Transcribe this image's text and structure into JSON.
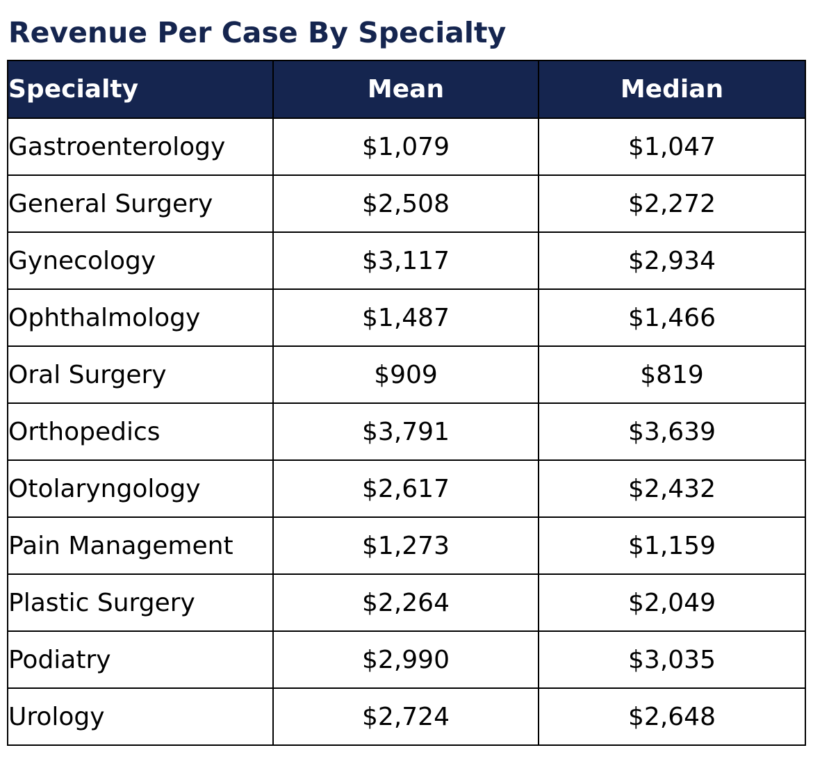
{
  "title": "Revenue Per Case By Specialty",
  "colors": {
    "header_bg": "#15254f",
    "title_text": "#15254f",
    "header_text": "#ffffff",
    "border": "#000000"
  },
  "chart_data": {
    "type": "table",
    "title": "Revenue Per Case By Specialty",
    "columns": [
      "Specialty",
      "Mean",
      "Median"
    ],
    "rows": [
      [
        "Gastroenterology",
        "$1,079",
        "$1,047"
      ],
      [
        "General Surgery",
        "$2,508",
        "$2,272"
      ],
      [
        "Gynecology",
        "$3,117",
        "$2,934"
      ],
      [
        "Ophthalmology",
        "$1,487",
        "$1,466"
      ],
      [
        "Oral Surgery",
        "$909",
        "$819"
      ],
      [
        "Orthopedics",
        "$3,791",
        "$3,639"
      ],
      [
        "Otolaryngology",
        "$2,617",
        "$2,432"
      ],
      [
        "Pain Management",
        "$1,273",
        "$1,159"
      ],
      [
        "Plastic Surgery",
        "$2,264",
        "$2,049"
      ],
      [
        "Podiatry",
        "$2,990",
        "$3,035"
      ],
      [
        "Urology",
        "$2,724",
        "$2,648"
      ]
    ]
  }
}
